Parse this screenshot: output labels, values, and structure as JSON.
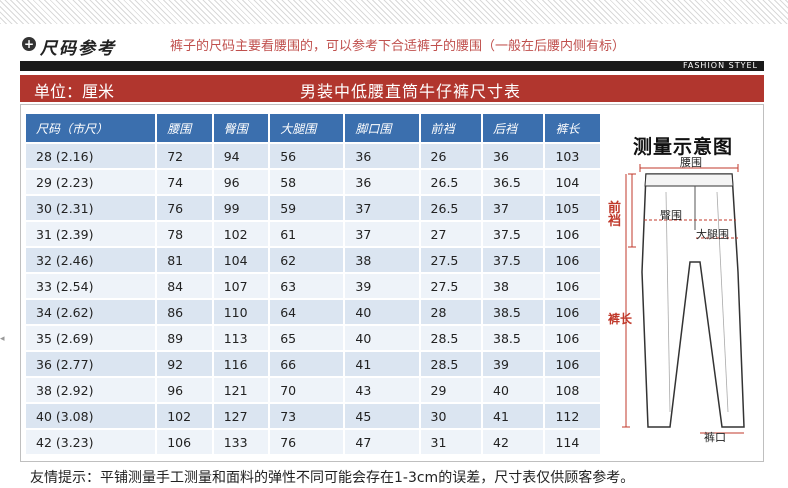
{
  "header": {
    "section_title": "尺码参考",
    "section_icon": "plus-circle-icon",
    "note": "裤子的尺码主要看腰围的，可以参考下合适裤子的腰围（一般在后腰内侧有标）",
    "fashion_label": "FASHION STYEL"
  },
  "table_header": {
    "unit": "单位：厘米",
    "title": "男装中低腰直筒牛仔裤尺寸表"
  },
  "size_table": {
    "columns": [
      "尺码（市尺）",
      "腰围",
      "臀围",
      "大腿围",
      "脚口围",
      "前裆",
      "后裆",
      "裤长"
    ],
    "rows": [
      [
        "28 (2.16)",
        "72",
        "94",
        "56",
        "36",
        "26",
        "36",
        "103"
      ],
      [
        "29 (2.23)",
        "74",
        "96",
        "58",
        "36",
        "26.5",
        "36.5",
        "104"
      ],
      [
        "30 (2.31)",
        "76",
        "99",
        "59",
        "37",
        "26.5",
        "37",
        "105"
      ],
      [
        "31 (2.39)",
        "78",
        "102",
        "61",
        "37",
        "27",
        "37.5",
        "106"
      ],
      [
        "32 (2.46)",
        "81",
        "104",
        "62",
        "38",
        "27.5",
        "37.5",
        "106"
      ],
      [
        "33 (2.54)",
        "84",
        "107",
        "63",
        "39",
        "27.5",
        "38",
        "106"
      ],
      [
        "34 (2.62)",
        "86",
        "110",
        "64",
        "40",
        "28",
        "38.5",
        "106"
      ],
      [
        "35 (2.69)",
        "89",
        "113",
        "65",
        "40",
        "28.5",
        "38.5",
        "106"
      ],
      [
        "36 (2.77)",
        "92",
        "116",
        "66",
        "41",
        "28.5",
        "39",
        "106"
      ],
      [
        "38 (2.92)",
        "96",
        "121",
        "70",
        "43",
        "29",
        "40",
        "108"
      ],
      [
        "40 (3.08)",
        "102",
        "127",
        "73",
        "45",
        "30",
        "41",
        "112"
      ],
      [
        "42 (3.23)",
        "106",
        "133",
        "76",
        "47",
        "31",
        "42",
        "114"
      ]
    ]
  },
  "diagram": {
    "title": "测量示意图",
    "labels": {
      "waist": "腰围",
      "hip": "臀围",
      "front_rise": "前裆",
      "thigh": "大腿围",
      "length": "裤长",
      "hem": "裤口"
    }
  },
  "footer": {
    "note": "友情提示：平铺测量手工测量和面料的弹性不同可能会存在1-3cm的误差，尺寸表仅供顾客参考。"
  },
  "colors": {
    "header_red": "#b1362e",
    "table_header_blue": "#3b6fae",
    "row_blue_dark": "#dbe5f1",
    "row_blue_light": "#eef3f9",
    "note_red": "#c0504d"
  }
}
